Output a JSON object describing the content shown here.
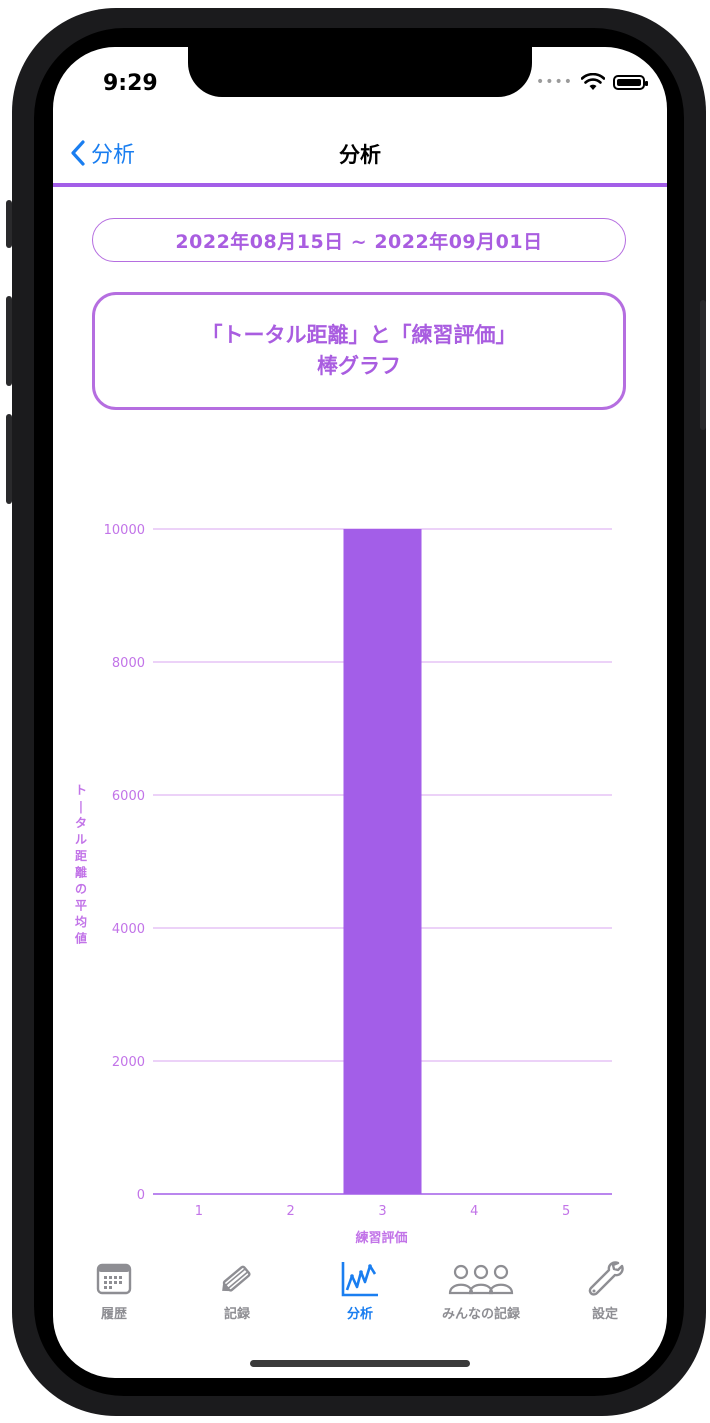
{
  "status": {
    "time": "9:29"
  },
  "nav": {
    "back_label": "分析",
    "title": "分析"
  },
  "date_range": "2022年08月15日 ~ 2022年09月01日",
  "chart_title": {
    "line1": "「トータル距離」と「練習評価」",
    "line2": "棒グラフ"
  },
  "colors": {
    "accent": "#a35ee8",
    "bar": "#a35ee8",
    "link": "#1a7ef0"
  },
  "chart_data": {
    "type": "bar",
    "categories": [
      "1",
      "2",
      "3",
      "4",
      "5"
    ],
    "values": [
      0,
      0,
      10000,
      0,
      0
    ],
    "xlabel": "練習評価",
    "ylabel": "トータル距離の平均値",
    "ylim": [
      0,
      10000
    ],
    "yticks": [
      0,
      2000,
      4000,
      6000,
      8000,
      10000
    ],
    "grid": true
  },
  "tabs": [
    {
      "label": "履歴",
      "icon": "calendar-icon",
      "active": false
    },
    {
      "label": "記録",
      "icon": "pencil-icon",
      "active": false
    },
    {
      "label": "分析",
      "icon": "chart-icon",
      "active": true
    },
    {
      "label": "みんなの記録",
      "icon": "people-icon",
      "active": false
    },
    {
      "label": "設定",
      "icon": "wrench-icon",
      "active": false
    }
  ]
}
